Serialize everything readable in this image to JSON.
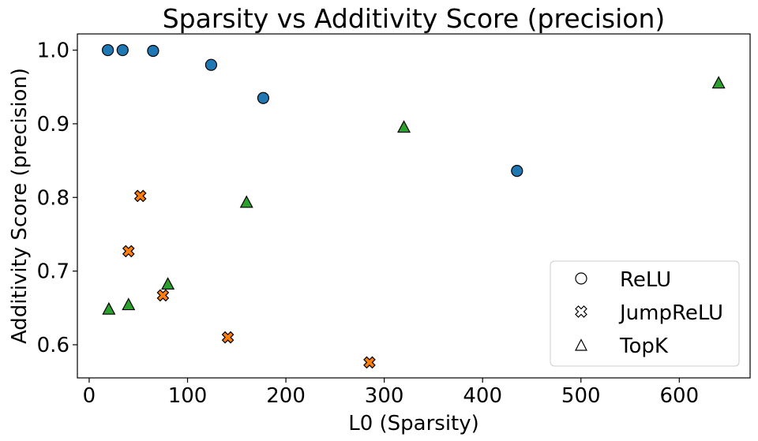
{
  "chart_data": {
    "type": "scatter",
    "title": "Sparsity vs Additivity Score (precision)",
    "xlabel": "L0 (Sparsity)",
    "ylabel": "Additivity Score (precision)",
    "xlim": [
      -12,
      672
    ],
    "ylim": [
      0.555,
      1.022
    ],
    "x_ticks": [
      0,
      100,
      200,
      300,
      400,
      500,
      600
    ],
    "y_ticks": [
      0.6,
      0.7,
      0.8,
      0.9,
      1.0
    ],
    "x_tick_labels": [
      "0",
      "100",
      "200",
      "300",
      "400",
      "500",
      "600"
    ],
    "y_tick_labels": [
      "0.6",
      "0.7",
      "0.8",
      "0.9",
      "1.0"
    ],
    "grid": false,
    "legend_position": "bottom-right",
    "series": [
      {
        "name": "ReLU",
        "marker": "circle",
        "color": "#1f77b4",
        "points": [
          {
            "x": 19,
            "y": 1.0
          },
          {
            "x": 34,
            "y": 1.0
          },
          {
            "x": 65,
            "y": 0.999
          },
          {
            "x": 124,
            "y": 0.98
          },
          {
            "x": 177,
            "y": 0.935
          },
          {
            "x": 435,
            "y": 0.836
          }
        ]
      },
      {
        "name": "JumpReLU",
        "marker": "x-filled",
        "color": "#ff7f0e",
        "points": [
          {
            "x": 52,
            "y": 0.802
          },
          {
            "x": 40,
            "y": 0.727
          },
          {
            "x": 75,
            "y": 0.667
          },
          {
            "x": 141,
            "y": 0.61
          },
          {
            "x": 285,
            "y": 0.576
          }
        ]
      },
      {
        "name": "TopK",
        "marker": "triangle",
        "color": "#2ca02c",
        "points": [
          {
            "x": 20,
            "y": 0.648
          },
          {
            "x": 40,
            "y": 0.654
          },
          {
            "x": 80,
            "y": 0.682
          },
          {
            "x": 160,
            "y": 0.793
          },
          {
            "x": 320,
            "y": 0.895
          },
          {
            "x": 640,
            "y": 0.955
          }
        ]
      }
    ]
  }
}
